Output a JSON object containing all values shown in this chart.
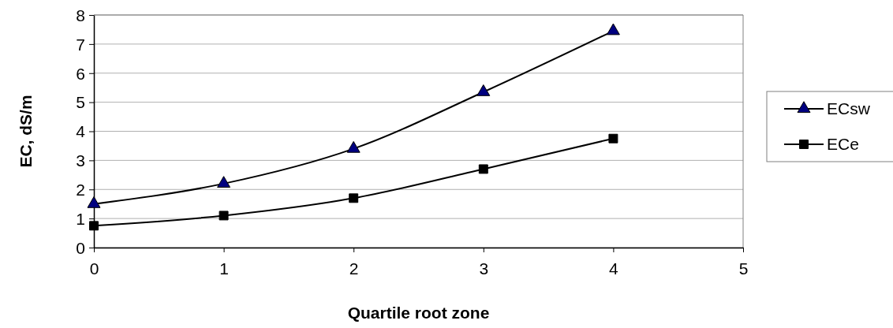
{
  "chart_data": {
    "type": "line",
    "xlabel": "Quartile root zone",
    "ylabel": "EC, dS/m",
    "x": [
      0,
      1,
      2,
      3,
      4
    ],
    "xlim": [
      0,
      5
    ],
    "xticks": [
      0,
      1,
      2,
      3,
      4,
      5
    ],
    "ylim": [
      0,
      8
    ],
    "yticks": [
      0,
      1,
      2,
      3,
      4,
      5,
      6,
      7,
      8
    ],
    "grid": "y",
    "legend": "right",
    "line_style": "solid",
    "series": [
      {
        "name": "ECsw",
        "color": "#000080",
        "marker": "triangle",
        "values": [
          1.5,
          2.2,
          3.4,
          5.35,
          7.45
        ]
      },
      {
        "name": "ECe",
        "color": "#000000",
        "marker": "square",
        "values": [
          0.75,
          1.1,
          1.7,
          2.7,
          3.75
        ]
      }
    ]
  }
}
